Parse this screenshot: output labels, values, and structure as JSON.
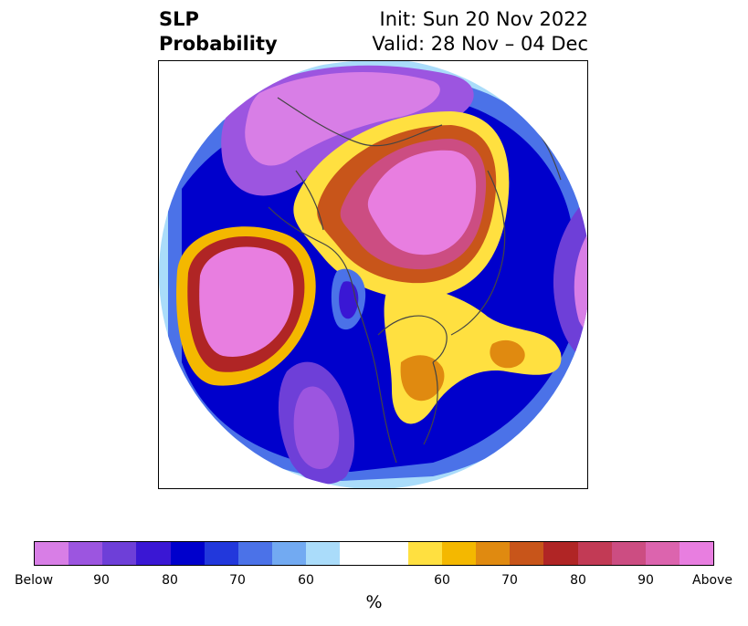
{
  "title": {
    "left_line1": "SLP",
    "left_line2": "Probability",
    "right_line1": "Init: Sun 20 Nov 2022",
    "right_line2": "Valid: 28 Nov – 04 Dec"
  },
  "map": {
    "projection": "north-polar-stereographic",
    "field": "SLP probability",
    "coastline_color": "#444444"
  },
  "colorbar": {
    "unit_label": "%",
    "colors": [
      "#d87ee6",
      "#9c55e0",
      "#6e3fd8",
      "#3a17d4",
      "#0000cc",
      "#2238dc",
      "#4b72e8",
      "#72aaf2",
      "#aadcfa",
      "#ffffff",
      "#ffffff",
      "#ffe040",
      "#f4b800",
      "#e08a10",
      "#c8551a",
      "#b02525",
      "#c23a55",
      "#cc4d82",
      "#dc64ae",
      "#e87ee0"
    ],
    "tick_labels": [
      "Below",
      "90",
      "80",
      "70",
      "60",
      "60",
      "70",
      "80",
      "90",
      "Above"
    ]
  }
}
